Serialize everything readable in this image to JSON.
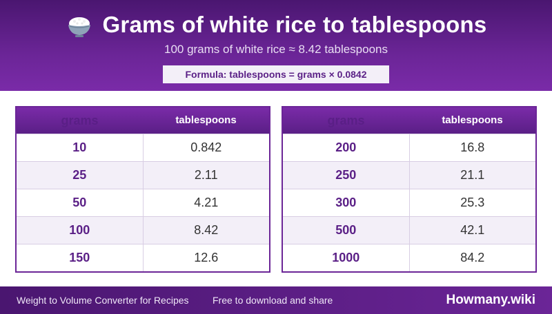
{
  "header": {
    "title": "Grams of white rice to tablespoons",
    "subtitle": "100 grams of white rice ≈ 8.42 tablespoons",
    "formula": "Formula: tablespoons = grams × 0.0842",
    "icon": "rice-bowl-icon"
  },
  "table_left": {
    "headers": [
      "grams",
      "tablespoons"
    ],
    "rows": [
      {
        "grams": "10",
        "tbsp": "0.842"
      },
      {
        "grams": "25",
        "tbsp": "2.11"
      },
      {
        "grams": "50",
        "tbsp": "4.21"
      },
      {
        "grams": "100",
        "tbsp": "8.42"
      },
      {
        "grams": "150",
        "tbsp": "12.6"
      }
    ]
  },
  "table_right": {
    "headers": [
      "grams",
      "tablespoons"
    ],
    "rows": [
      {
        "grams": "200",
        "tbsp": "16.8"
      },
      {
        "grams": "250",
        "tbsp": "21.1"
      },
      {
        "grams": "300",
        "tbsp": "25.3"
      },
      {
        "grams": "500",
        "tbsp": "42.1"
      },
      {
        "grams": "1000",
        "tbsp": "84.2"
      }
    ]
  },
  "footer": {
    "left_text": "Weight to Volume Converter for Recipes",
    "middle_text": "Free to download and share",
    "brand": "Howmany.wiki"
  },
  "colors": {
    "primary": "#6b2597",
    "dark": "#4a1670",
    "row_alt": "#f3eff8"
  }
}
